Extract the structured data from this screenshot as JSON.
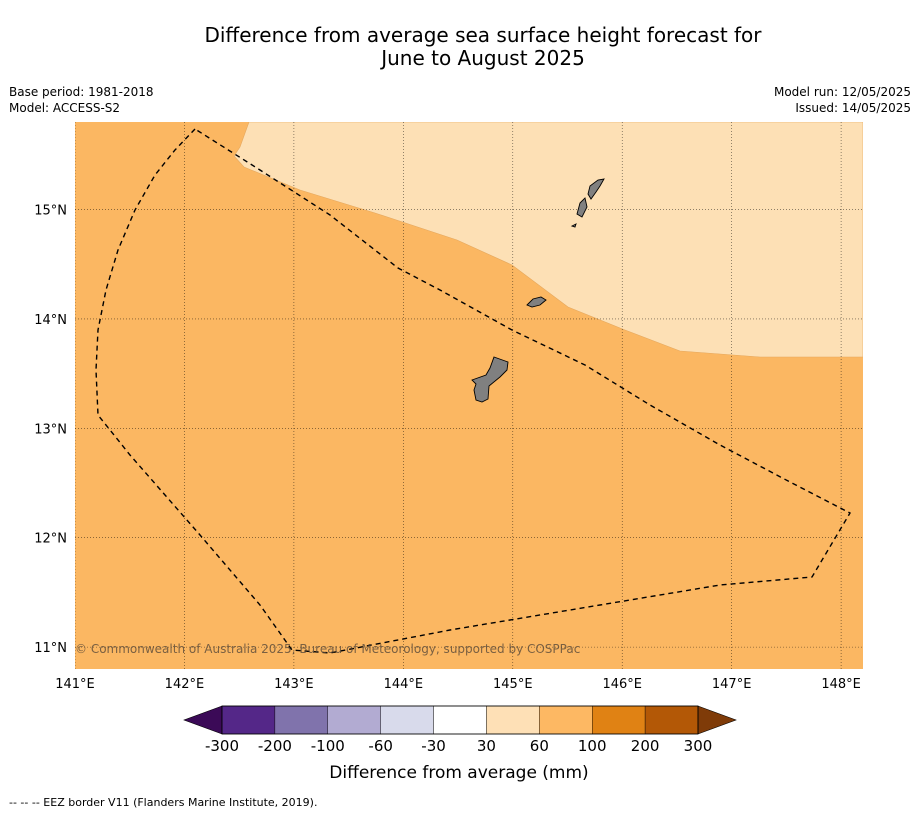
{
  "title_line_1": "Difference from average sea surface height forecast for",
  "title_line_2": "June to August 2025",
  "meta": {
    "base_period": "Base period: 1981-2018",
    "model": "Model: ACCESS-S2",
    "model_run": "Model run: 12/05/2025",
    "issued": "Issued: 14/05/2025"
  },
  "map": {
    "lon_range": [
      141.0,
      148.2
    ],
    "lat_range": [
      10.8,
      15.8
    ],
    "lon_ticks": [
      "141°E",
      "142°E",
      "143°E",
      "144°E",
      "145°E",
      "146°E",
      "147°E",
      "148°E"
    ],
    "lat_ticks": [
      "11°N",
      "12°N",
      "13°N",
      "14°N",
      "15°N"
    ],
    "copyright": "© Commonwealth of Australia 2025, Bureau of Meteorology, supported by COSPPac",
    "colors": {
      "band_30_60": "#fde0b5",
      "band_60_100": "#fbb762",
      "land": "#808080"
    }
  },
  "colorbar": {
    "title": "Difference from average (mm)",
    "labels": [
      "-300",
      "-200",
      "-100",
      "-60",
      "-30",
      "30",
      "60",
      "100",
      "200",
      "300"
    ],
    "colors": [
      "#3b0a57",
      "#542788",
      "#8073ac",
      "#b2abd2",
      "#d8daeb",
      "#ffffff",
      "#fee0b6",
      "#fdb863",
      "#e08214",
      "#b35806",
      "#7f3b08"
    ]
  },
  "footer": "--  --  -- EEZ border V11 (Flanders Marine Institute, 2019)."
}
